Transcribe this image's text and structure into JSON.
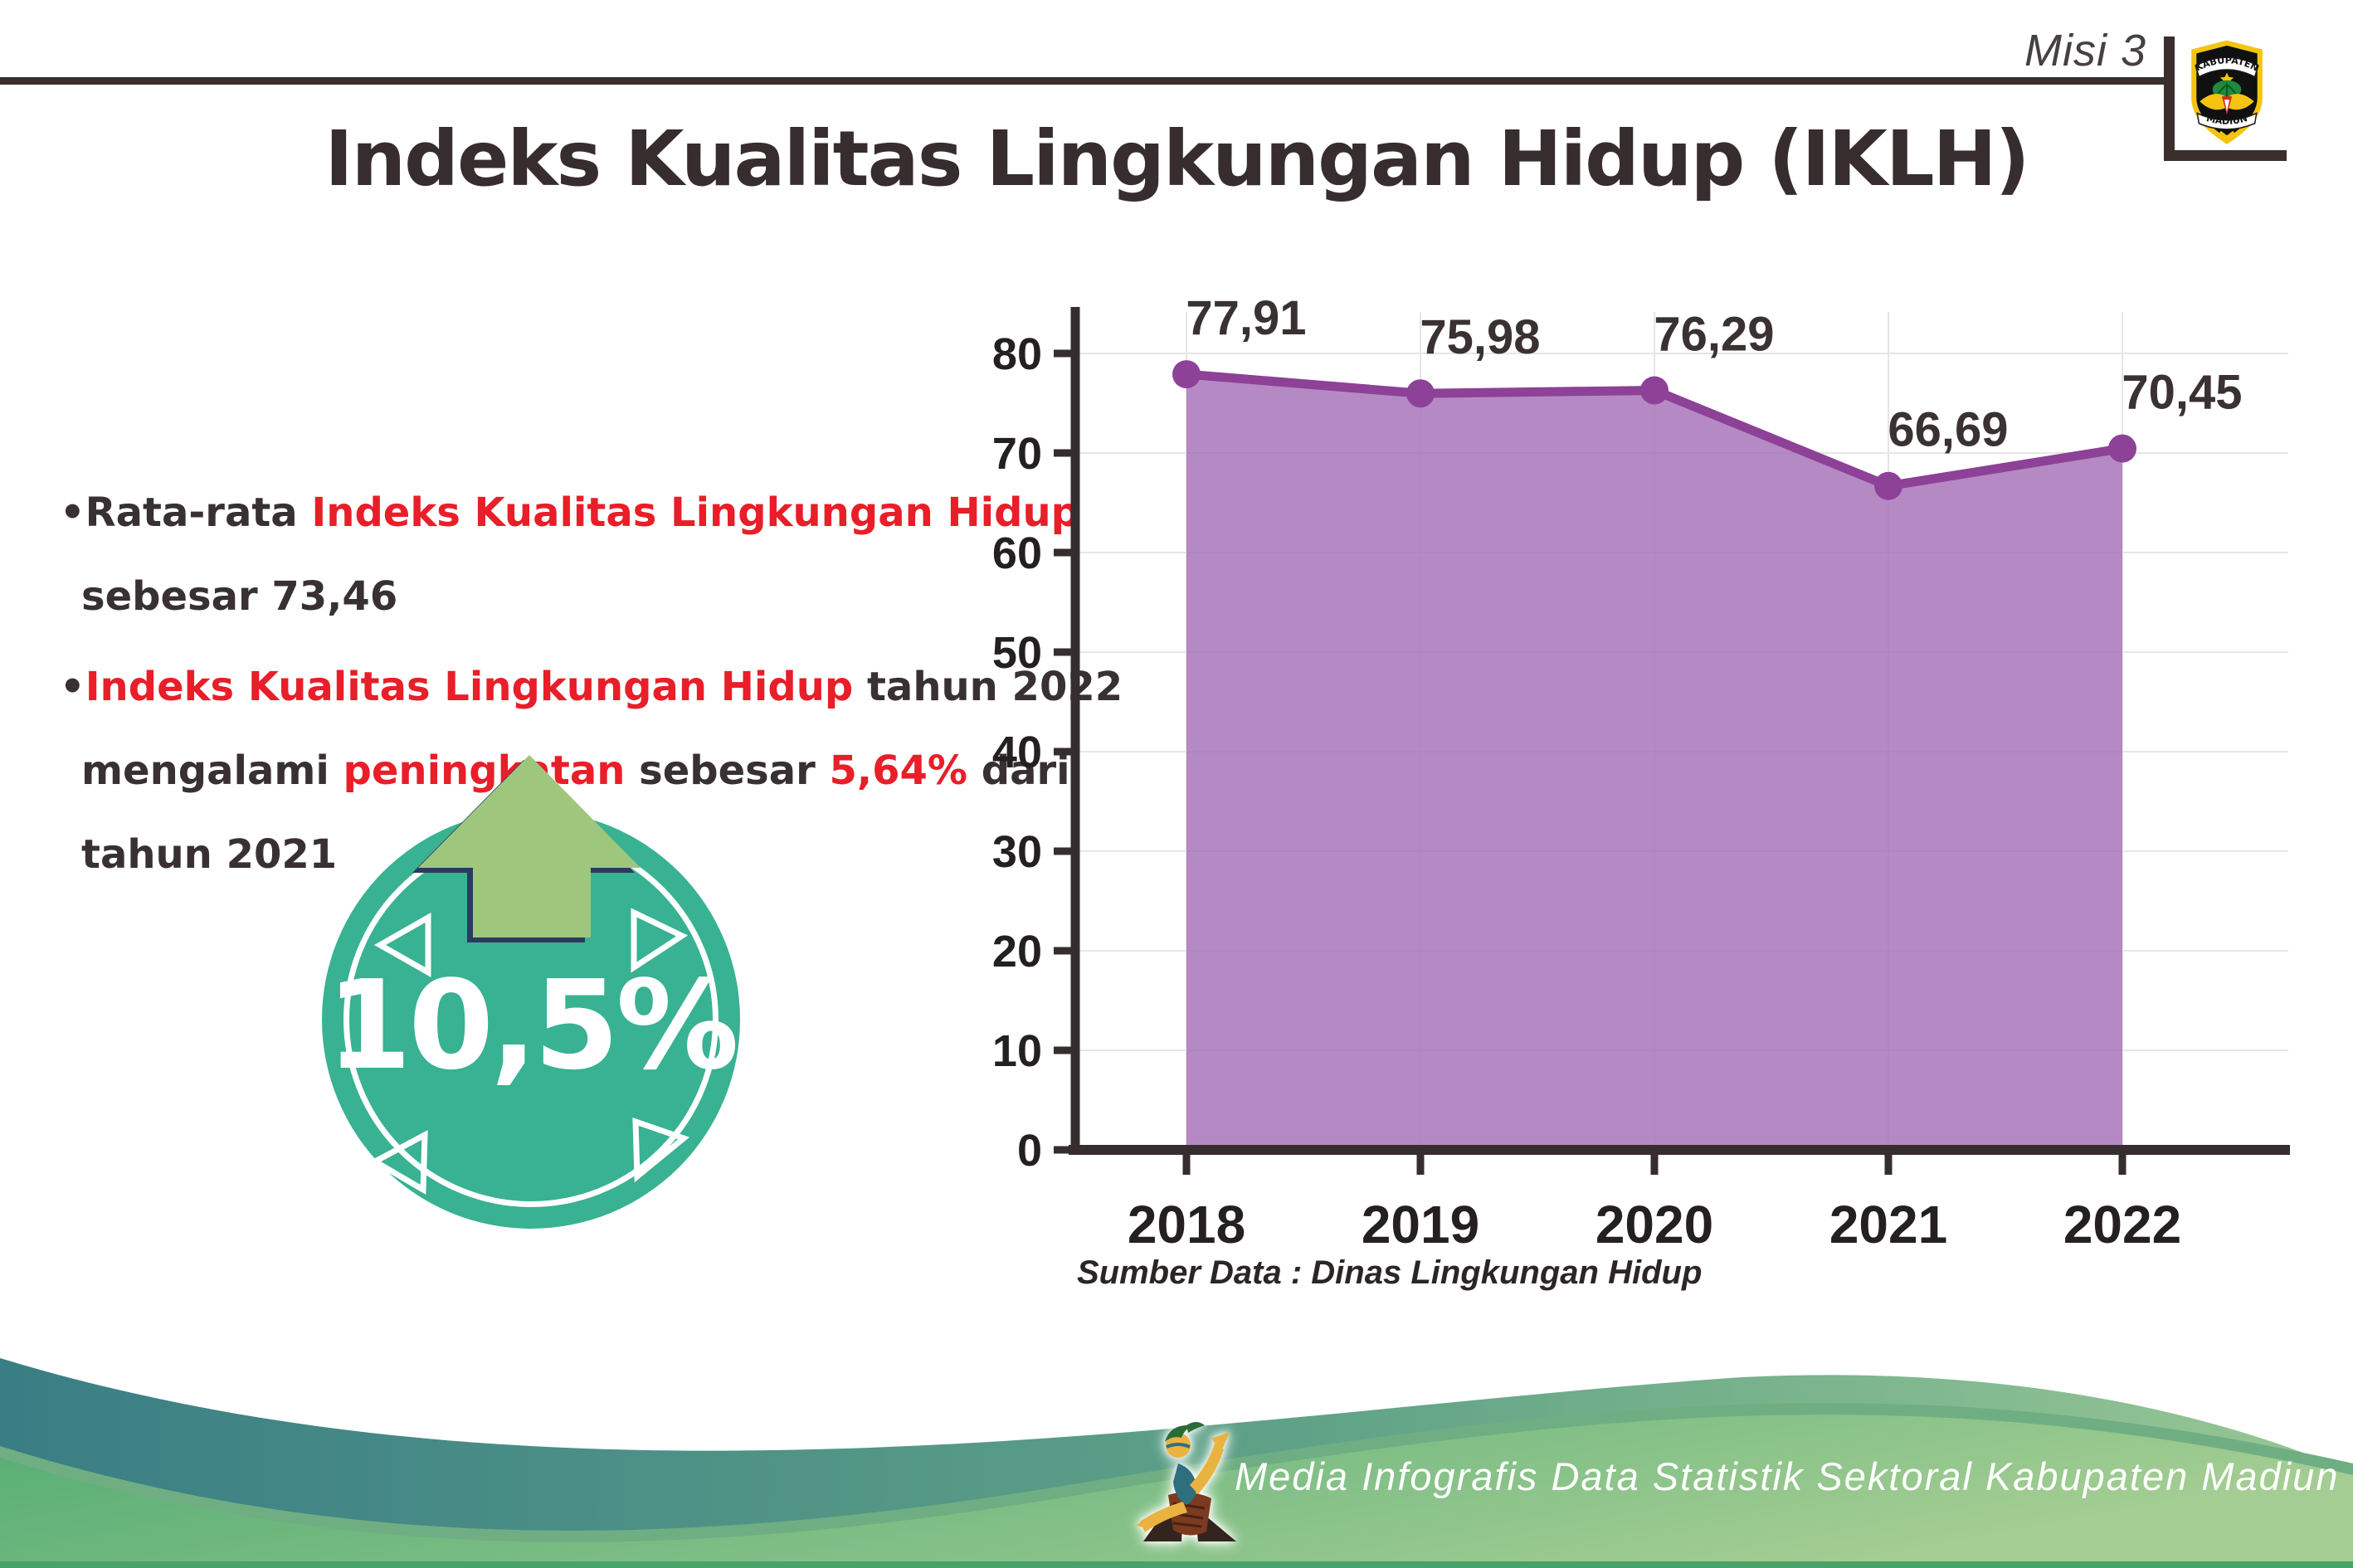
{
  "header": {
    "misi": "Misi 3",
    "title": "Indeks Kualitas Lingkungan Hidup (IKLH)",
    "logo_top": "KABUPATEN",
    "logo_bottom": "MADIUN"
  },
  "bullets": {
    "b1": [
      [
        {
          "t": "•Rata-rata ",
          "c": "dark"
        },
        {
          "t": "Indeks Kualitas Lingkungan Hidup",
          "c": "red"
        }
      ],
      [
        {
          "t": "sebesar 73,46",
          "c": "dark"
        }
      ]
    ],
    "b2": [
      [
        {
          "t": "•",
          "c": "dark"
        },
        {
          "t": "Indeks Kualitas Lingkungan Hidup",
          "c": "red"
        },
        {
          "t": " tahun 2022",
          "c": "dark"
        }
      ],
      [
        {
          "t": "mengalami ",
          "c": "dark"
        },
        {
          "t": "peningkatan",
          "c": "red"
        },
        {
          "t": " sebesar ",
          "c": "dark"
        },
        {
          "t": "5,64%",
          "c": "red"
        },
        {
          "t": " dari",
          "c": "dark"
        }
      ],
      [
        {
          "t": "tahun 2021",
          "c": "dark"
        }
      ]
    ]
  },
  "badge": {
    "value": "10,5%",
    "circle_color": "#38b292",
    "arrow_color": "#9ec77d"
  },
  "chart_data": {
    "type": "area",
    "categories": [
      "2018",
      "2019",
      "2020",
      "2021",
      "2022"
    ],
    "values": [
      77.91,
      75.98,
      76.29,
      66.69,
      70.45
    ],
    "labels": [
      "77,91",
      "75,98",
      "76,29",
      "66,69",
      "70,45"
    ],
    "title": "Indeks Kualitas Lingkungan Hidup (IKLH)",
    "ylim": [
      0,
      80
    ],
    "yticks": [
      0,
      10,
      20,
      30,
      40,
      50,
      60,
      70,
      80
    ],
    "grid": true,
    "legend": "none",
    "line_color": "#8d4197",
    "fill_color": "rgba(165,112,183,0.82)",
    "source": "Sumber Data : Dinas Lingkungan Hidup"
  },
  "footer": {
    "caption": "Media Infografis Data Statistik Sektoral Kabupaten Madiun |"
  }
}
